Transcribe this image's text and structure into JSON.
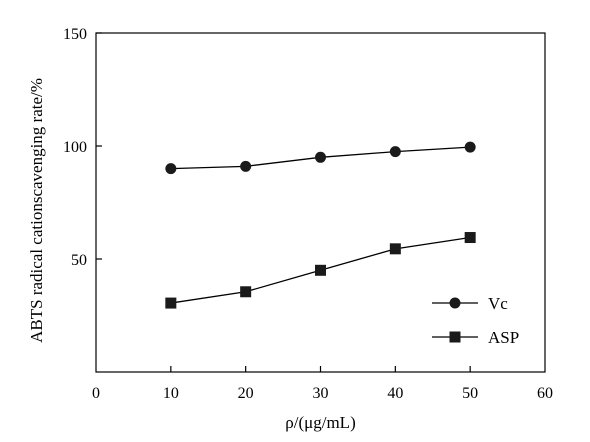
{
  "chart_data": {
    "type": "line",
    "x": [
      10,
      20,
      30,
      40,
      50
    ],
    "series": [
      {
        "name": "Vc",
        "marker": "circle",
        "values": [
          90.0,
          91.0,
          95.0,
          97.5,
          99.5
        ]
      },
      {
        "name": "ASP",
        "marker": "square",
        "values": [
          30.5,
          35.5,
          45.0,
          54.5,
          59.5
        ]
      }
    ],
    "xlabel": "ρ/(μg/mL)",
    "ylabel": "ABTS radical cationscavenging rate/%",
    "xlim": [
      0,
      60
    ],
    "ylim": [
      0,
      150
    ],
    "x_ticks": [
      "0",
      "10",
      "20",
      "30",
      "40",
      "50",
      "60"
    ],
    "y_ticks": [
      "50",
      "100",
      "150"
    ],
    "grid": false,
    "legend_position": "bottom-right",
    "colors": {
      "line": "#000000",
      "marker": "#1a1a1a"
    }
  }
}
